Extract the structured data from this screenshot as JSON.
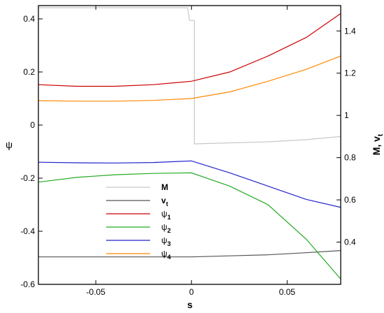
{
  "chart_data": {
    "type": "line",
    "xlabel": "s",
    "ylabel_left": "ψ",
    "ylabel_right_main": "M, v",
    "ylabel_right_sub": "t",
    "xlim": [
      -0.08,
      0.078
    ],
    "ylim_left": [
      -0.6,
      0.45
    ],
    "ylim_right": [
      0.2,
      1.52
    ],
    "x_ticks": [
      -0.05,
      0,
      0.05
    ],
    "x_tick_labels": [
      "-0.05",
      "0",
      "0.05"
    ],
    "y_left_ticks": [
      -0.6,
      -0.4,
      -0.2,
      0,
      0.2,
      0.4
    ],
    "y_left_tick_labels": [
      "-0.6",
      "-0.4",
      "-0.2",
      "0",
      "0.2",
      "0.4"
    ],
    "y_right_ticks": [
      0.4,
      0.6,
      0.8,
      1.0,
      1.2,
      1.4
    ],
    "y_right_tick_labels": [
      "0.4",
      "0.6",
      "0.8",
      "1",
      "1.2",
      "1.4"
    ],
    "legend_position": "center-left",
    "series": [
      {
        "name": "M",
        "name_sub": "",
        "axis": "right",
        "color": "#c8c8c8",
        "x": [
          -0.08,
          -0.002,
          -0.001,
          0.0015,
          0.0015,
          0.02,
          0.04,
          0.06,
          0.078
        ],
        "y": [
          1.51,
          1.51,
          1.45,
          1.45,
          0.865,
          0.87,
          0.875,
          0.885,
          0.9
        ]
      },
      {
        "name": "v",
        "name_sub": "t",
        "axis": "right",
        "color": "#555555",
        "x": [
          -0.08,
          -0.05,
          -0.02,
          0.0,
          0.02,
          0.04,
          0.06,
          0.078
        ],
        "y": [
          0.33,
          0.33,
          0.33,
          0.33,
          0.335,
          0.34,
          0.35,
          0.36
        ]
      },
      {
        "name": "ψ",
        "name_sub": "1",
        "axis": "left",
        "color": "#cc0000",
        "x": [
          -0.08,
          -0.06,
          -0.04,
          -0.02,
          0.0,
          0.02,
          0.04,
          0.06,
          0.078
        ],
        "y": [
          0.152,
          0.146,
          0.146,
          0.152,
          0.165,
          0.2,
          0.26,
          0.33,
          0.42
        ]
      },
      {
        "name": "ψ",
        "name_sub": "2",
        "axis": "left",
        "color": "#22aa22",
        "x": [
          -0.08,
          -0.06,
          -0.04,
          -0.02,
          0.0,
          0.02,
          0.04,
          0.06,
          0.078
        ],
        "y": [
          -0.215,
          -0.197,
          -0.187,
          -0.182,
          -0.18,
          -0.23,
          -0.3,
          -0.43,
          -0.58
        ]
      },
      {
        "name": "ψ",
        "name_sub": "3",
        "axis": "left",
        "color": "#2222cc",
        "x": [
          -0.08,
          -0.06,
          -0.04,
          -0.02,
          0.0,
          0.02,
          0.04,
          0.06,
          0.078
        ],
        "y": [
          -0.14,
          -0.142,
          -0.143,
          -0.141,
          -0.135,
          -0.18,
          -0.23,
          -0.28,
          -0.31
        ]
      },
      {
        "name": "ψ",
        "name_sub": "4",
        "axis": "left",
        "color": "#ff8800",
        "x": [
          -0.08,
          -0.06,
          -0.04,
          -0.02,
          0.0,
          0.02,
          0.04,
          0.06,
          0.078
        ],
        "y": [
          0.092,
          0.09,
          0.09,
          0.093,
          0.1,
          0.125,
          0.165,
          0.21,
          0.26
        ]
      }
    ]
  }
}
